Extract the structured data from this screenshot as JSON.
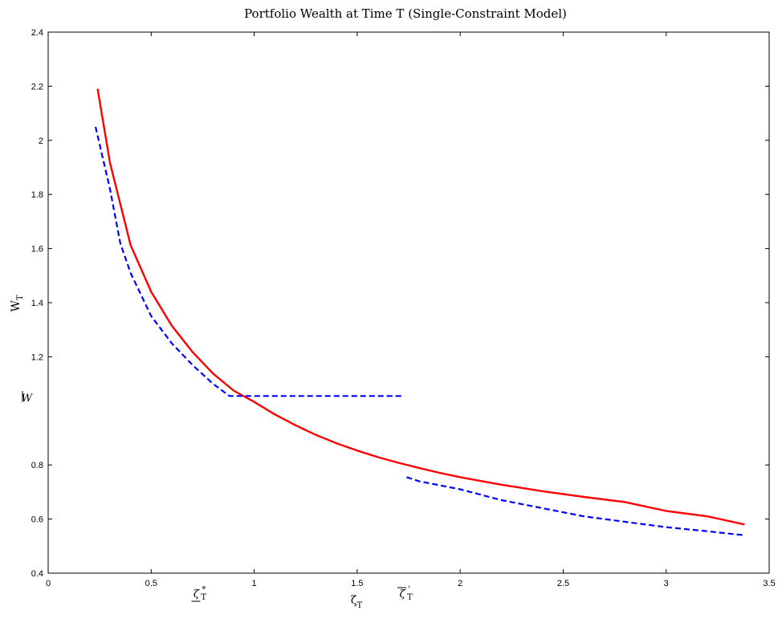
{
  "chart_data": {
    "type": "line",
    "title": "Portfolio Wealth at Time T (Single-Constraint Model)",
    "xlabel": "ζ",
    "xlabel_sub": "T",
    "ylabel": "W",
    "ylabel_sub": "T",
    "xlim": [
      0,
      3.5
    ],
    "ylim": [
      0.4,
      2.4
    ],
    "grid": false,
    "x_ticks": [
      0,
      0.5,
      1,
      1.5,
      2,
      2.5,
      3,
      3.5
    ],
    "x_tick_labels": [
      "0",
      "0.5",
      "1",
      "1.5",
      "2",
      "2.5",
      "3",
      "3.5"
    ],
    "y_ticks": [
      0.4,
      0.6,
      0.8,
      1.2,
      1.4,
      1.6,
      1.8,
      2,
      2.2,
      2.4
    ],
    "y_tick_labels": [
      "0.4",
      "0.6",
      "0.8",
      "1.2",
      "1.4",
      "1.6",
      "1.8",
      "2",
      "2.2",
      "2.4"
    ],
    "annotations": [
      {
        "text": "W",
        "overline": false,
        "underline": true,
        "axis": "y",
        "value": 1.05
      },
      {
        "text": "ζ",
        "superscript": "*",
        "subscript": "T",
        "underline": true,
        "axis": "x",
        "value": 0.75
      },
      {
        "text": "ζ",
        "superscript": "'",
        "subscript": "T",
        "overline": true,
        "axis": "x",
        "value": 1.75
      }
    ],
    "series": [
      {
        "color": "#ff0000",
        "dash": "solid",
        "segments": [
          {
            "x": [
              0.24,
              0.3,
              0.4,
              0.5,
              0.6,
              0.7,
              0.8,
              0.9,
              1.0,
              1.1,
              1.2,
              1.3,
              1.4,
              1.5,
              1.6,
              1.7,
              1.8,
              1.9,
              2.0,
              2.2,
              2.4,
              2.6,
              2.8,
              3.0,
              3.2,
              3.38
            ],
            "y": [
              2.19,
              1.917,
              1.613,
              1.44,
              1.315,
              1.218,
              1.138,
              1.075,
              1.033,
              0.987,
              0.947,
              0.911,
              0.88,
              0.853,
              0.829,
              0.808,
              0.789,
              0.771,
              0.755,
              0.727,
              0.703,
              0.682,
              0.663,
              0.63,
              0.61,
              0.58
            ]
          }
        ]
      },
      {
        "color": "#0000ff",
        "dash": "dashed",
        "segments": [
          {
            "x": [
              0.23,
              0.3,
              0.35,
              0.4,
              0.5,
              0.6,
              0.7,
              0.8,
              0.88,
              1.0,
              1.2,
              1.4,
              1.6,
              1.73
            ],
            "y": [
              2.05,
              1.82,
              1.62,
              1.51,
              1.35,
              1.25,
              1.17,
              1.1,
              1.055,
              1.055,
              1.055,
              1.055,
              1.055,
              1.055
            ]
          },
          {
            "x": [
              1.74,
              1.8,
              2.0,
              2.2,
              2.4,
              2.6,
              2.8,
              3.0,
              3.2,
              3.38
            ],
            "y": [
              0.755,
              0.74,
              0.71,
              0.67,
              0.64,
              0.61,
              0.59,
              0.57,
              0.555,
              0.54
            ]
          }
        ]
      }
    ]
  }
}
